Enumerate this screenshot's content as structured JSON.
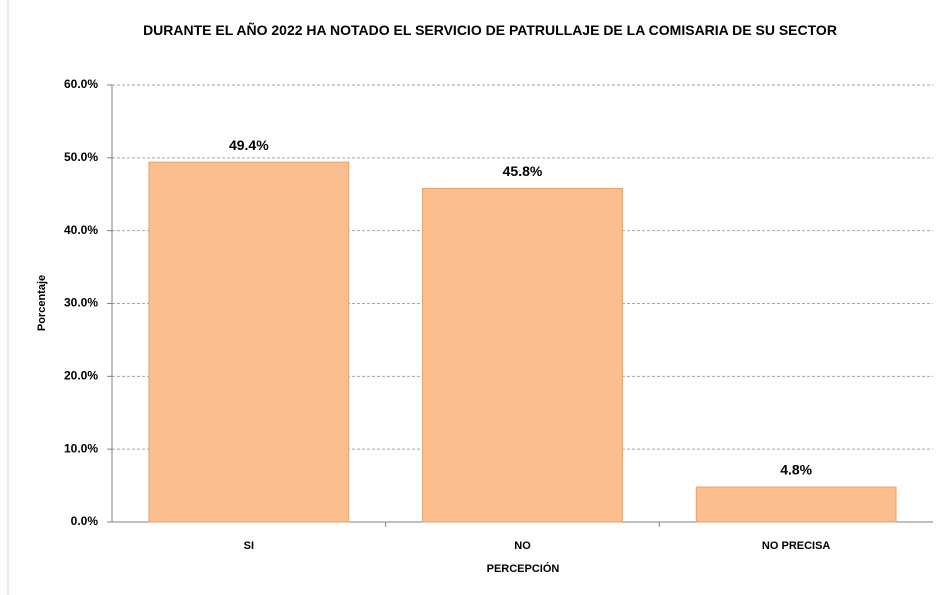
{
  "chart_data": {
    "type": "bar",
    "title": "DURANTE EL AÑO 2022 HA NOTADO  EL SERVICIO DE PATRULLAJE DE LA COMISARIA DE SU SECTOR",
    "x_label": "PERCEPCIÓN",
    "y_label": "Porcentaje",
    "categories": [
      "SI",
      "NO",
      "NO PRECISA"
    ],
    "values": [
      49.4,
      45.8,
      4.8
    ],
    "value_labels": [
      "49.4%",
      "45.8%",
      "4.8%"
    ],
    "color": "#fbbf8f",
    "ylim": [
      0,
      60
    ],
    "yticks": [
      {
        "value": 0,
        "label": "0.0%"
      },
      {
        "value": 10,
        "label": "10.0%"
      },
      {
        "value": 20,
        "label": "20.0%"
      },
      {
        "value": 30,
        "label": "30.0%"
      },
      {
        "value": 40,
        "label": "40.0%"
      },
      {
        "value": 50,
        "label": "50.0%"
      },
      {
        "value": 60,
        "label": "60.0%"
      }
    ],
    "grid": true
  }
}
